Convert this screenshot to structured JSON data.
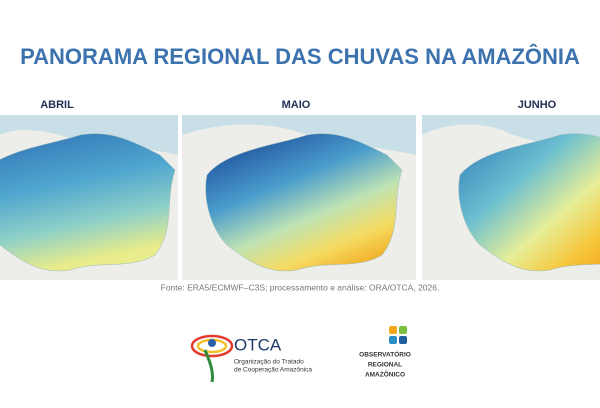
{
  "header": {
    "title": "PANORAMA REGIONAL DAS CHUVAS NA AMAZÔNIA"
  },
  "panels": [
    {
      "label": "ABRIL"
    },
    {
      "label": "MAIO"
    },
    {
      "label": "JUNHO"
    }
  ],
  "source": "Fonte: ERA5/ECMWF–C3S; processamento e análise: ORA/OTCA, 2026.",
  "logos": {
    "otca": {
      "name": "OTCA",
      "lines": [
        "Organização do Tratado",
        "de Cooperação Amazônica"
      ]
    },
    "ora": {
      "lines": [
        "OBSERVATÓRIO",
        "REGIONAL",
        "AMAZÔNICO"
      ]
    }
  }
}
